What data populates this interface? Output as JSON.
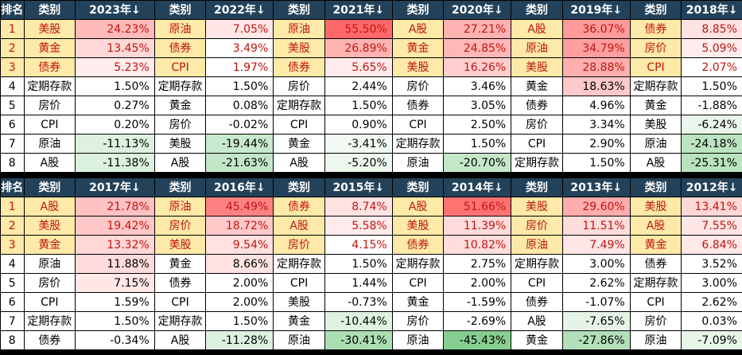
{
  "headers": {
    "rank": "排名",
    "category": "类别",
    "arrow": "↓"
  },
  "colors": {
    "header_bg": "#23425a",
    "top3_bg": "#fde9a8",
    "top3_text": "#c0150f",
    "positive_strong": "#ee6f6f",
    "negative_strong": "#8fcf98"
  },
  "sections": [
    {
      "years": [
        "2023年",
        "2022年",
        "2021年",
        "2020年",
        "2019年",
        "2018年"
      ],
      "rows": [
        {
          "rank": "1",
          "cells": [
            [
              "美股",
              "24.23%"
            ],
            [
              "原油",
              "7.05%"
            ],
            [
              "原油",
              "55.50%"
            ],
            [
              "A股",
              "27.21%"
            ],
            [
              "A股",
              "36.07%"
            ],
            [
              "债券",
              "8.85%"
            ]
          ]
        },
        {
          "rank": "2",
          "cells": [
            [
              "黄金",
              "13.45%"
            ],
            [
              "债券",
              "3.49%"
            ],
            [
              "美股",
              "26.89%"
            ],
            [
              "黄金",
              "24.85%"
            ],
            [
              "原油",
              "34.79%"
            ],
            [
              "房价",
              "5.09%"
            ]
          ]
        },
        {
          "rank": "3",
          "cells": [
            [
              "债券",
              "5.23%"
            ],
            [
              "CPI",
              "1.97%"
            ],
            [
              "债券",
              "5.65%"
            ],
            [
              "美股",
              "16.26%"
            ],
            [
              "美股",
              "28.88%"
            ],
            [
              "CPI",
              "2.07%"
            ]
          ]
        },
        {
          "rank": "4",
          "cells": [
            [
              "定期存款",
              "1.50%"
            ],
            [
              "定期存款",
              "1.50%"
            ],
            [
              "房价",
              "2.44%"
            ],
            [
              "房价",
              "3.46%"
            ],
            [
              "黄金",
              "18.63%"
            ],
            [
              "定期存款",
              "1.50%"
            ]
          ]
        },
        {
          "rank": "5",
          "cells": [
            [
              "房价",
              "0.27%"
            ],
            [
              "黄金",
              "0.08%"
            ],
            [
              "定期存款",
              "1.50%"
            ],
            [
              "债券",
              "3.05%"
            ],
            [
              "债券",
              "4.96%"
            ],
            [
              "黄金",
              "-1.88%"
            ]
          ]
        },
        {
          "rank": "6",
          "cells": [
            [
              "CPI",
              "0.20%"
            ],
            [
              "房价",
              "-0.02%"
            ],
            [
              "CPI",
              "0.90%"
            ],
            [
              "CPI",
              "2.50%"
            ],
            [
              "房价",
              "3.34%"
            ],
            [
              "美股",
              "-6.24%"
            ]
          ]
        },
        {
          "rank": "7",
          "cells": [
            [
              "原油",
              "-11.13%"
            ],
            [
              "美股",
              "-19.44%"
            ],
            [
              "黄金",
              "-3.41%"
            ],
            [
              "定期存款",
              "1.50%"
            ],
            [
              "CPI",
              "2.90%"
            ],
            [
              "原油",
              "-24.18%"
            ]
          ]
        },
        {
          "rank": "8",
          "cells": [
            [
              "A股",
              "-11.38%"
            ],
            [
              "A股",
              "-21.63%"
            ],
            [
              "A股",
              "-5.20%"
            ],
            [
              "原油",
              "-20.70%"
            ],
            [
              "定期存款",
              "1.50%"
            ],
            [
              "A股",
              "-25.31%"
            ]
          ]
        }
      ]
    },
    {
      "years": [
        "2017年",
        "2016年",
        "2015年",
        "2014年",
        "2013年",
        "2012年"
      ],
      "rows": [
        {
          "rank": "1",
          "cells": [
            [
              "A股",
              "21.78%"
            ],
            [
              "原油",
              "45.49%"
            ],
            [
              "债券",
              "8.74%"
            ],
            [
              "A股",
              "51.66%"
            ],
            [
              "美股",
              "29.60%"
            ],
            [
              "美股",
              "13.41%"
            ]
          ]
        },
        {
          "rank": "2",
          "cells": [
            [
              "美股",
              "19.42%"
            ],
            [
              "房价",
              "18.72%"
            ],
            [
              "A股",
              "5.58%"
            ],
            [
              "美股",
              "11.39%"
            ],
            [
              "房价",
              "11.51%"
            ],
            [
              "A股",
              "7.55%"
            ]
          ]
        },
        {
          "rank": "3",
          "cells": [
            [
              "黄金",
              "13.32%"
            ],
            [
              "美股",
              "9.54%"
            ],
            [
              "房价",
              "4.15%"
            ],
            [
              "债券",
              "10.82%"
            ],
            [
              "原油",
              "7.49%"
            ],
            [
              "黄金",
              "6.84%"
            ]
          ]
        },
        {
          "rank": "4",
          "cells": [
            [
              "原油",
              "11.88%"
            ],
            [
              "黄金",
              "8.66%"
            ],
            [
              "定期存款",
              "1.50%"
            ],
            [
              "定期存款",
              "2.75%"
            ],
            [
              "定期存款",
              "3.00%"
            ],
            [
              "债券",
              "3.52%"
            ]
          ]
        },
        {
          "rank": "5",
          "cells": [
            [
              "房价",
              "7.15%"
            ],
            [
              "债券",
              "2.00%"
            ],
            [
              "CPI",
              "1.44%"
            ],
            [
              "CPI",
              "2.00%"
            ],
            [
              "CPI",
              "2.62%"
            ],
            [
              "定期存款",
              "3.00%"
            ]
          ]
        },
        {
          "rank": "6",
          "cells": [
            [
              "CPI",
              "1.59%"
            ],
            [
              "CPI",
              "2.00%"
            ],
            [
              "美股",
              "-0.73%"
            ],
            [
              "黄金",
              "-1.59%"
            ],
            [
              "债券",
              "-1.07%"
            ],
            [
              "CPI",
              "2.62%"
            ]
          ]
        },
        {
          "rank": "7",
          "cells": [
            [
              "定期存款",
              "1.50%"
            ],
            [
              "定期存款",
              "1.50%"
            ],
            [
              "黄金",
              "-10.44%"
            ],
            [
              "房价",
              "-2.69%"
            ],
            [
              "A股",
              "-7.65%"
            ],
            [
              "房价",
              "0.03%"
            ]
          ]
        },
        {
          "rank": "8",
          "cells": [
            [
              "债券",
              "-0.34%"
            ],
            [
              "A股",
              "-11.28%"
            ],
            [
              "原油",
              "-30.41%"
            ],
            [
              "原油",
              "-45.43%"
            ],
            [
              "黄金",
              "-27.86%"
            ],
            [
              "原油",
              "-7.09%"
            ]
          ]
        }
      ]
    }
  ]
}
